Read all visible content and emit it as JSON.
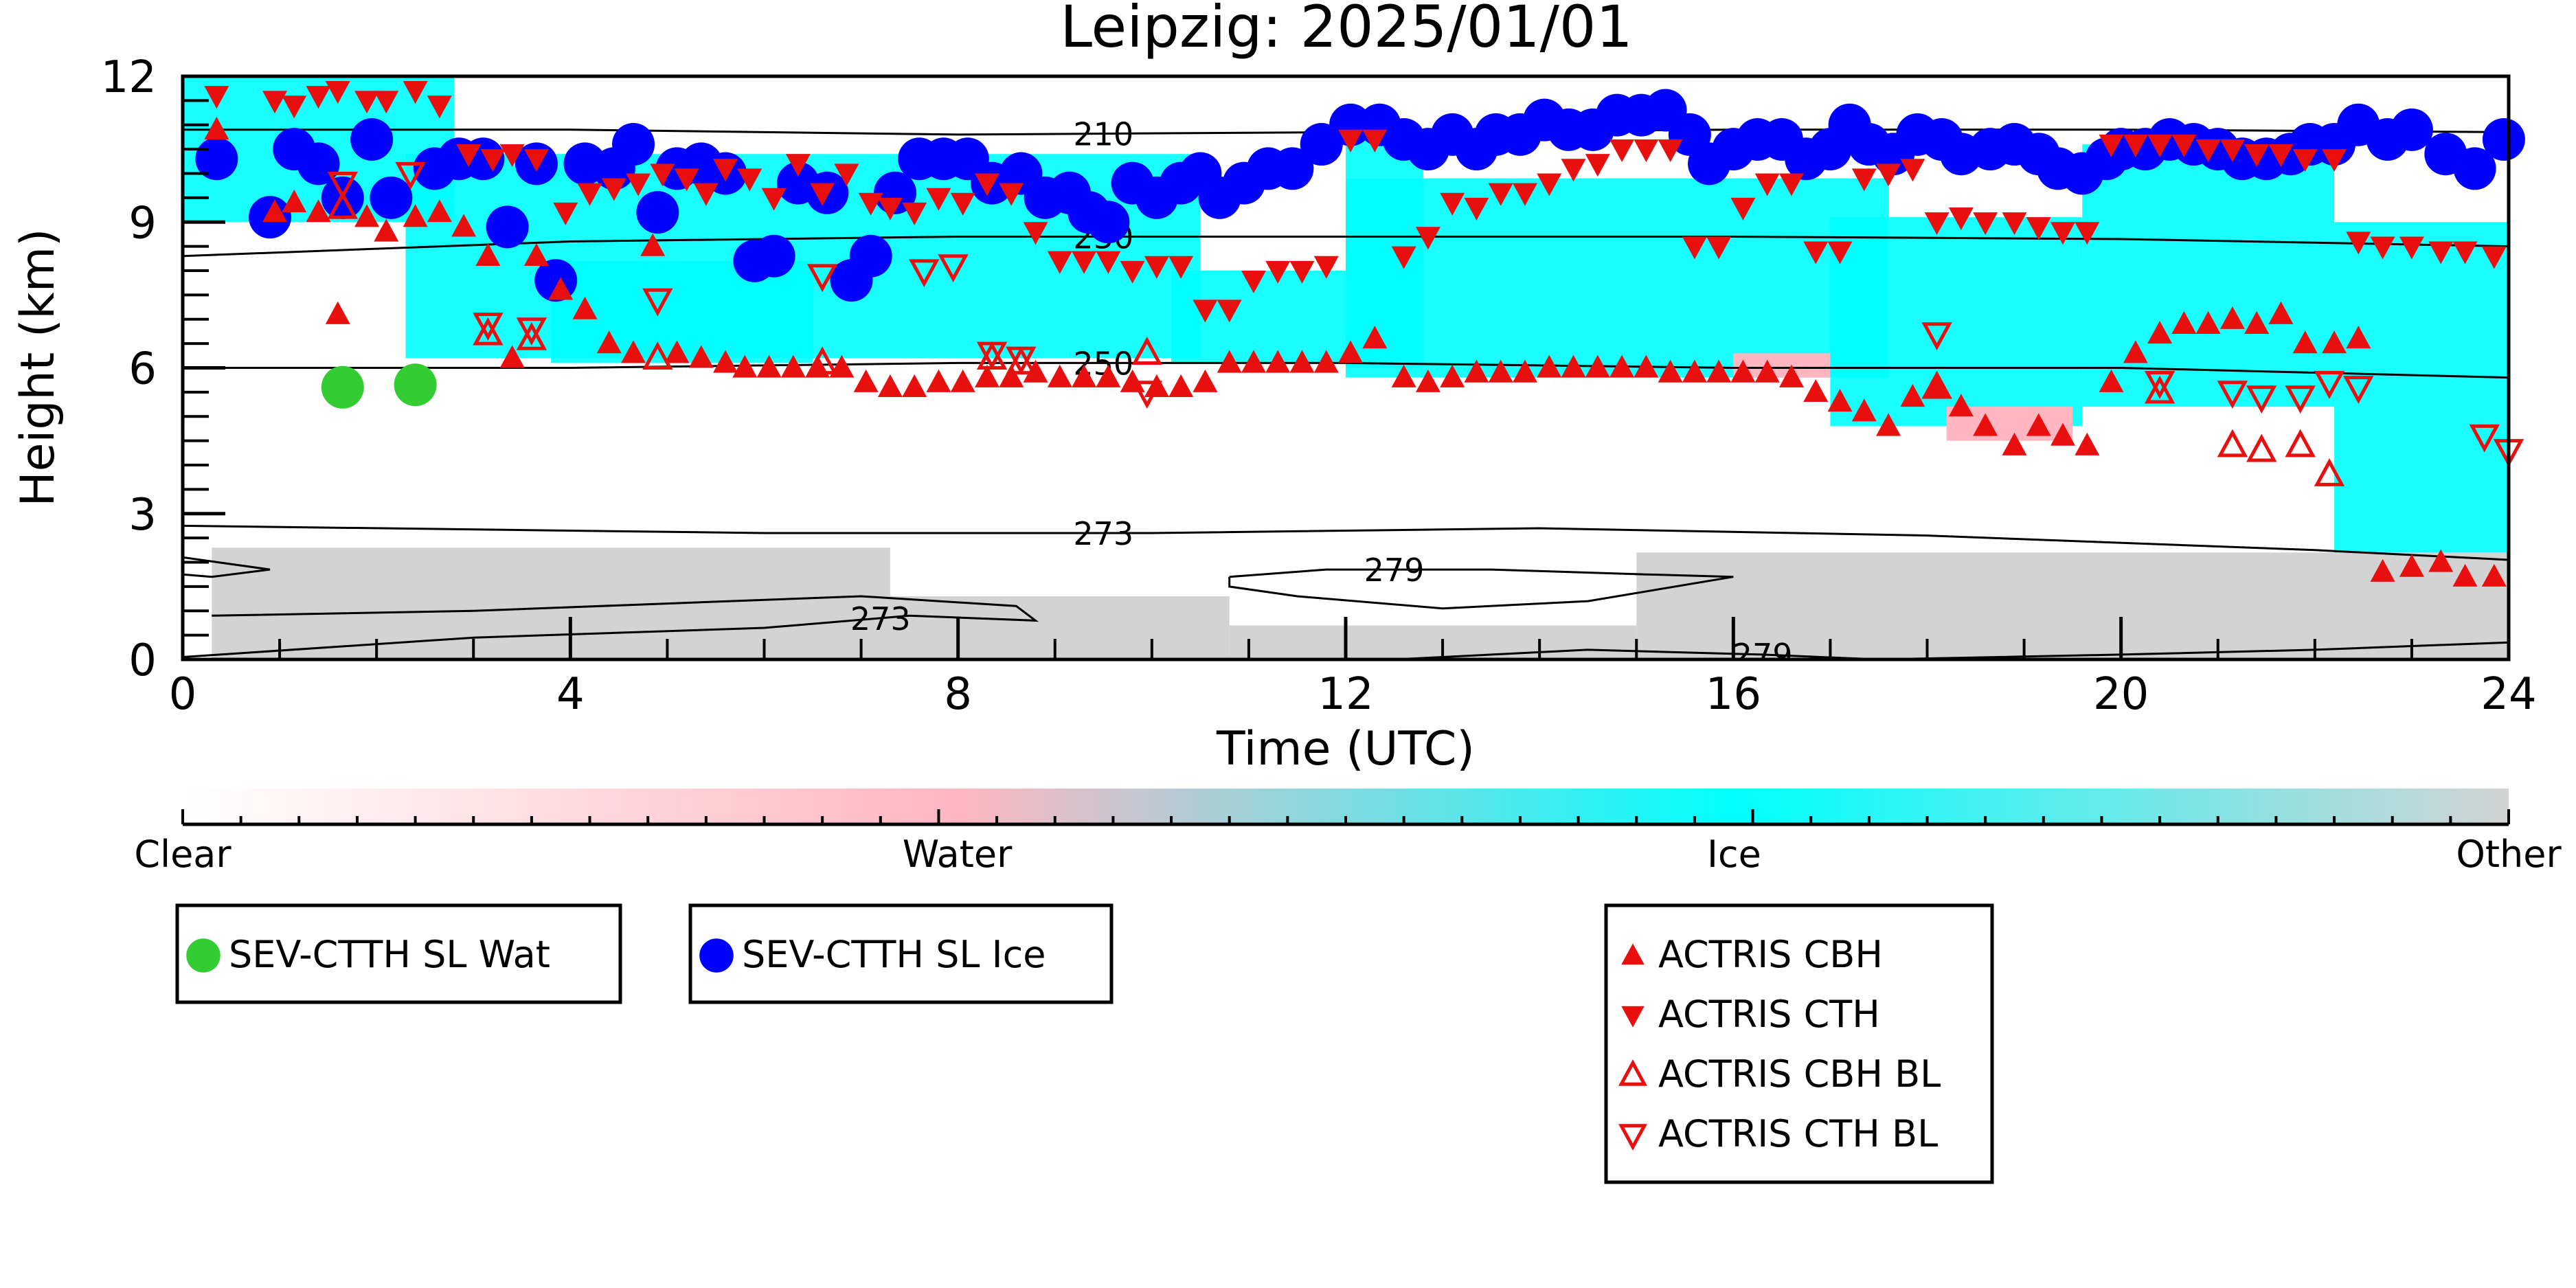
{
  "chart_data": {
    "type": "scatter",
    "title": "Leipzig: 2025/01/01",
    "xlabel": "Time (UTC)",
    "ylabel": "Height (km)",
    "xlim": [
      0,
      24
    ],
    "ylim": [
      0,
      12
    ],
    "x_ticks": [
      0,
      4,
      8,
      12,
      16,
      20,
      24
    ],
    "y_ticks": [
      0,
      3,
      6,
      9,
      12
    ],
    "colors": {
      "clear": "#ffffff",
      "water": "#ffb6c1",
      "ice": "#00ffff",
      "other": "#d3d3d3",
      "sev_wat": "#33cc33",
      "sev_ice": "#0000ff",
      "actris": "#e8100f"
    },
    "colorbar": {
      "labels": [
        "Clear",
        "Water",
        "Ice",
        "Other"
      ],
      "positions": [
        0,
        0.333,
        0.667,
        1.0
      ]
    },
    "background_regions": [
      {
        "class": "ice",
        "x0": 0.0,
        "x1": 2.8,
        "y0": 9.0,
        "y1": 12.0
      },
      {
        "class": "ice",
        "x0": 2.3,
        "x1": 10.5,
        "y0": 6.2,
        "y1": 10.4
      },
      {
        "class": "ice",
        "x0": 3.8,
        "x1": 6.5,
        "y0": 6.1,
        "y1": 8.2
      },
      {
        "class": "ice",
        "x0": 10.2,
        "x1": 12.5,
        "y0": 6.1,
        "y1": 8.0
      },
      {
        "class": "ice",
        "x0": 12.0,
        "x1": 17.6,
        "y0": 5.8,
        "y1": 9.9
      },
      {
        "class": "ice",
        "x0": 12.0,
        "x1": 12.8,
        "y0": 6.0,
        "y1": 10.9
      },
      {
        "class": "ice",
        "x0": 17.0,
        "x1": 19.6,
        "y0": 4.8,
        "y1": 9.1
      },
      {
        "class": "ice",
        "x0": 19.6,
        "x1": 22.2,
        "y0": 5.2,
        "y1": 10.6
      },
      {
        "class": "ice",
        "x0": 22.2,
        "x1": 24.0,
        "y0": 1.8,
        "y1": 9.0
      },
      {
        "class": "water",
        "x0": 16.0,
        "x1": 17.0,
        "y0": 5.8,
        "y1": 6.3
      },
      {
        "class": "water",
        "x0": 18.2,
        "x1": 19.5,
        "y0": 4.5,
        "y1": 5.2
      },
      {
        "class": "water",
        "x0": 20.5,
        "x1": 21.5,
        "y0": 1.4,
        "y1": 1.9
      },
      {
        "class": "water",
        "x0": 22.0,
        "x1": 24.0,
        "y0": 1.3,
        "y1": 2.1
      },
      {
        "class": "other",
        "x0": 0.3,
        "x1": 7.3,
        "y0": 0.0,
        "y1": 2.3
      },
      {
        "class": "other",
        "x0": 7.0,
        "x1": 10.8,
        "y0": 0.0,
        "y1": 1.3
      },
      {
        "class": "other",
        "x0": 10.8,
        "x1": 15.0,
        "y0": 0.0,
        "y1": 0.7
      },
      {
        "class": "other",
        "x0": 15.0,
        "x1": 24.0,
        "y0": 0.0,
        "y1": 2.2
      }
    ],
    "contours": [
      {
        "label": "210",
        "label_x": 9.5,
        "points": [
          [
            0,
            10.9
          ],
          [
            4,
            10.9
          ],
          [
            8,
            10.8
          ],
          [
            12,
            10.85
          ],
          [
            16,
            10.9
          ],
          [
            20,
            10.9
          ],
          [
            24,
            10.85
          ]
        ]
      },
      {
        "label": "230",
        "label_x": 9.5,
        "points": [
          [
            0,
            8.3
          ],
          [
            4,
            8.6
          ],
          [
            8,
            8.7
          ],
          [
            12,
            8.7
          ],
          [
            16,
            8.7
          ],
          [
            20,
            8.65
          ],
          [
            24,
            8.5
          ]
        ]
      },
      {
        "label": "250",
        "label_x": 9.5,
        "points": [
          [
            0,
            6.0
          ],
          [
            4,
            6.0
          ],
          [
            8,
            6.1
          ],
          [
            12,
            6.1
          ],
          [
            16,
            6.0
          ],
          [
            20,
            6.0
          ],
          [
            24,
            5.8
          ]
        ]
      },
      {
        "label": "273",
        "label_x": 9.5,
        "points": [
          [
            0,
            2.75
          ],
          [
            6,
            2.6
          ],
          [
            10,
            2.6
          ],
          [
            14,
            2.7
          ],
          [
            18,
            2.55
          ],
          [
            22,
            2.25
          ],
          [
            24,
            2.05
          ]
        ]
      },
      {
        "label": "273",
        "label_x": 7.2,
        "points": [
          [
            0,
            0.05
          ],
          [
            3,
            0.45
          ],
          [
            6,
            0.65
          ],
          [
            7.5,
            0.9
          ],
          [
            8.8,
            0.8
          ],
          [
            8.6,
            1.1
          ],
          [
            7.0,
            1.3
          ],
          [
            5.0,
            1.15
          ],
          [
            3.0,
            1.0
          ],
          [
            0.3,
            0.9
          ]
        ]
      },
      {
        "label": "",
        "label_x": 0,
        "points": [
          [
            0,
            2.1
          ],
          [
            0.9,
            1.85
          ],
          [
            0.3,
            1.7
          ],
          [
            0,
            1.75
          ]
        ]
      },
      {
        "label": "279",
        "label_x": 12.5,
        "points": [
          [
            10.8,
            1.7
          ],
          [
            11.8,
            1.85
          ],
          [
            13.5,
            1.85
          ],
          [
            15.1,
            1.75
          ],
          [
            16.0,
            1.7
          ],
          [
            14.5,
            1.2
          ],
          [
            13.0,
            1.05
          ],
          [
            11.5,
            1.3
          ],
          [
            10.8,
            1.5
          ],
          [
            10.8,
            1.7
          ]
        ]
      },
      {
        "label": "279",
        "label_x": 16.3,
        "points": [
          [
            12.5,
            0.0
          ],
          [
            14.5,
            0.2
          ],
          [
            16.3,
            0.1
          ],
          [
            17.5,
            0.0
          ],
          [
            20,
            0.1
          ],
          [
            22,
            0.2
          ],
          [
            24,
            0.35
          ]
        ]
      }
    ],
    "series": [
      {
        "name": "SEV-CTTH SL Wat",
        "marker": "circle",
        "filled": true,
        "color": "#33cc33",
        "x": [
          1.65,
          2.4
        ],
        "y": [
          5.6,
          5.65
        ]
      },
      {
        "name": "SEV-CTTH SL Ice",
        "marker": "circle",
        "filled": true,
        "color": "#0000ff",
        "x": [
          0.35,
          0.9,
          1.15,
          1.4,
          1.65,
          1.95,
          2.15,
          2.6,
          2.85,
          3.1,
          3.35,
          3.65,
          3.85,
          4.15,
          4.45,
          4.65,
          4.9,
          5.1,
          5.35,
          5.6,
          5.9,
          6.1,
          6.35,
          6.65,
          6.9,
          7.1,
          7.35,
          7.6,
          7.85,
          8.1,
          8.35,
          8.65,
          8.9,
          9.15,
          9.35,
          9.55,
          9.8,
          10.05,
          10.3,
          10.5,
          10.7,
          10.95,
          11.2,
          11.45,
          11.75,
          12.05,
          12.35,
          12.6,
          12.85,
          13.1,
          13.35,
          13.55,
          13.8,
          14.05,
          14.3,
          14.55,
          14.8,
          15.05,
          15.3,
          15.55,
          15.75,
          16.0,
          16.25,
          16.5,
          16.75,
          17.0,
          17.2,
          17.4,
          17.65,
          17.9,
          18.15,
          18.35,
          18.65,
          18.9,
          19.15,
          19.35,
          19.6,
          19.85,
          20.0,
          20.25,
          20.5,
          20.75,
          21.0,
          21.25,
          21.5,
          21.75,
          21.95,
          22.2,
          22.45,
          22.75,
          23.0,
          23.35,
          23.65,
          23.95
        ],
        "y": [
          10.3,
          9.1,
          10.5,
          10.2,
          9.5,
          10.7,
          9.5,
          10.1,
          10.3,
          10.3,
          8.9,
          10.2,
          7.8,
          10.2,
          10.1,
          10.6,
          9.2,
          10.1,
          10.2,
          10.0,
          8.2,
          8.3,
          9.8,
          9.6,
          7.8,
          8.3,
          9.6,
          10.3,
          10.3,
          10.3,
          9.8,
          10.0,
          9.5,
          9.6,
          9.2,
          9.0,
          9.8,
          9.5,
          9.8,
          10.0,
          9.5,
          9.8,
          10.1,
          10.1,
          10.6,
          11.0,
          11.0,
          10.7,
          10.5,
          10.8,
          10.5,
          10.8,
          10.8,
          11.1,
          10.9,
          10.9,
          11.2,
          11.2,
          11.3,
          10.8,
          10.2,
          10.5,
          10.7,
          10.7,
          10.3,
          10.5,
          11.0,
          10.6,
          10.4,
          10.8,
          10.7,
          10.4,
          10.5,
          10.6,
          10.4,
          10.1,
          10.0,
          10.3,
          10.5,
          10.5,
          10.7,
          10.6,
          10.5,
          10.3,
          10.3,
          10.4,
          10.6,
          10.6,
          11.0,
          10.7,
          10.9,
          10.4,
          10.1,
          10.7
        ]
      },
      {
        "name": "ACTRIS CBH",
        "marker": "triangle-up",
        "filled": true,
        "color": "#e8100f",
        "x": [
          0.35,
          0.95,
          1.15,
          1.4,
          1.6,
          1.9,
          2.1,
          2.4,
          2.65,
          2.9,
          3.15,
          3.4,
          3.65,
          3.9,
          4.15,
          4.4,
          4.65,
          4.85,
          5.1,
          5.35,
          5.6,
          5.8,
          6.05,
          6.3,
          6.55,
          6.8,
          7.05,
          7.3,
          7.55,
          7.8,
          8.05,
          8.3,
          8.55,
          8.8,
          9.05,
          9.3,
          9.55,
          9.8,
          10.05,
          10.3,
          10.55,
          10.8,
          11.05,
          11.3,
          11.55,
          11.8,
          12.05,
          12.3,
          12.6,
          12.85,
          13.1,
          13.35,
          13.6,
          13.85,
          14.1,
          14.35,
          14.6,
          14.85,
          15.1,
          15.35,
          15.6,
          15.85,
          16.1,
          16.35,
          16.6,
          16.85,
          17.1,
          17.35,
          17.6,
          17.85,
          18.1,
          18.35,
          18.6,
          18.9,
          19.15,
          19.4,
          19.65,
          19.9,
          20.15,
          20.4,
          20.65,
          20.9,
          21.15,
          21.4,
          21.65,
          21.9,
          22.2,
          22.45,
          22.7,
          23.0,
          23.3,
          23.55,
          23.85
        ],
        "y": [
          10.9,
          9.2,
          9.4,
          9.2,
          7.1,
          9.1,
          8.8,
          9.1,
          9.2,
          8.9,
          8.3,
          6.2,
          8.3,
          7.6,
          7.2,
          6.5,
          6.3,
          8.5,
          6.3,
          6.2,
          6.1,
          6.0,
          6.0,
          6.0,
          6.0,
          6.0,
          5.7,
          5.6,
          5.6,
          5.7,
          5.7,
          5.8,
          5.8,
          5.9,
          5.8,
          5.8,
          5.8,
          5.7,
          5.6,
          5.6,
          5.7,
          6.1,
          6.1,
          6.1,
          6.1,
          6.1,
          6.3,
          6.6,
          5.8,
          5.7,
          5.8,
          5.9,
          5.9,
          5.9,
          6.0,
          6.0,
          6.0,
          6.0,
          6.0,
          5.9,
          5.9,
          5.9,
          5.9,
          5.9,
          5.8,
          5.5,
          5.3,
          5.1,
          4.8,
          5.4,
          5.6,
          5.2,
          4.8,
          4.4,
          4.8,
          4.6,
          4.4,
          5.7,
          6.3,
          6.7,
          6.9,
          6.9,
          7.0,
          6.9,
          7.1,
          6.5,
          6.5,
          6.6,
          1.8,
          1.9,
          2.0,
          1.7,
          1.7
        ]
      },
      {
        "name": "ACTRIS CTH",
        "marker": "triangle-down",
        "filled": true,
        "color": "#e8100f",
        "x": [
          0.35,
          0.95,
          1.15,
          1.4,
          1.6,
          1.9,
          2.1,
          2.4,
          2.65,
          2.95,
          3.2,
          3.4,
          3.65,
          3.95,
          4.2,
          4.45,
          4.7,
          4.95,
          5.2,
          5.4,
          5.6,
          5.85,
          6.1,
          6.35,
          6.6,
          6.85,
          7.1,
          7.3,
          7.55,
          7.8,
          8.05,
          8.3,
          8.55,
          8.8,
          9.05,
          9.3,
          9.55,
          9.8,
          10.05,
          10.3,
          10.55,
          10.8,
          11.05,
          11.3,
          11.55,
          11.8,
          12.05,
          12.3,
          12.6,
          12.85,
          13.1,
          13.35,
          13.6,
          13.85,
          14.1,
          14.35,
          14.6,
          14.85,
          15.1,
          15.35,
          15.6,
          15.85,
          16.1,
          16.35,
          16.6,
          16.85,
          17.1,
          17.35,
          17.6,
          17.85,
          18.1,
          18.35,
          18.6,
          18.9,
          19.15,
          19.4,
          19.65,
          19.9,
          20.15,
          20.4,
          20.65,
          20.9,
          21.15,
          21.4,
          21.65,
          21.9,
          22.2,
          22.45,
          22.7,
          23.0,
          23.3,
          23.55,
          23.85
        ],
        "y": [
          11.6,
          11.5,
          11.4,
          11.6,
          11.7,
          11.5,
          11.5,
          11.7,
          11.4,
          10.4,
          10.3,
          10.4,
          10.3,
          9.2,
          9.6,
          9.7,
          9.8,
          10.0,
          9.9,
          9.6,
          10.1,
          9.9,
          9.5,
          10.2,
          9.6,
          10.0,
          9.4,
          9.3,
          9.2,
          9.5,
          9.4,
          9.8,
          9.6,
          8.8,
          8.2,
          8.2,
          8.2,
          8.0,
          8.1,
          8.1,
          7.2,
          7.2,
          7.8,
          8.0,
          8.0,
          8.1,
          10.7,
          10.7,
          8.3,
          8.7,
          9.4,
          9.3,
          9.6,
          9.6,
          9.8,
          10.1,
          10.2,
          10.5,
          10.5,
          10.5,
          8.5,
          8.5,
          9.3,
          9.8,
          9.8,
          8.4,
          8.4,
          9.9,
          10.0,
          10.1,
          9.0,
          9.1,
          9.0,
          9.0,
          8.9,
          8.8,
          8.8,
          10.6,
          10.6,
          10.6,
          10.6,
          10.5,
          10.5,
          10.4,
          10.4,
          10.3,
          10.3,
          8.6,
          8.5,
          8.5,
          8.4,
          8.4,
          8.3
        ]
      },
      {
        "name": "ACTRIS CBH BL",
        "marker": "triangle-up",
        "filled": false,
        "color": "#e8100f",
        "x": [
          1.65,
          3.15,
          3.6,
          4.9,
          6.6,
          8.35,
          8.65,
          9.95,
          18.1,
          20.4,
          21.15,
          21.45,
          21.85,
          22.15
        ],
        "y": [
          9.3,
          6.7,
          6.6,
          6.2,
          6.1,
          6.2,
          6.1,
          6.3,
          5.6,
          5.5,
          4.4,
          4.3,
          4.4,
          3.8
        ]
      },
      {
        "name": "ACTRIS CTH BL",
        "marker": "triangle-down",
        "filled": false,
        "color": "#e8100f",
        "x": [
          1.65,
          2.35,
          3.15,
          3.6,
          4.9,
          6.6,
          7.65,
          7.95,
          8.35,
          8.65,
          9.95,
          18.1,
          20.4,
          21.15,
          21.45,
          21.85,
          22.15,
          22.45,
          23.75,
          24.0
        ],
        "y": [
          9.8,
          10.0,
          6.9,
          6.8,
          7.4,
          7.9,
          8.0,
          8.1,
          6.3,
          6.2,
          5.5,
          6.7,
          5.7,
          5.5,
          5.4,
          5.4,
          5.7,
          5.6,
          4.6,
          4.3
        ]
      }
    ]
  }
}
